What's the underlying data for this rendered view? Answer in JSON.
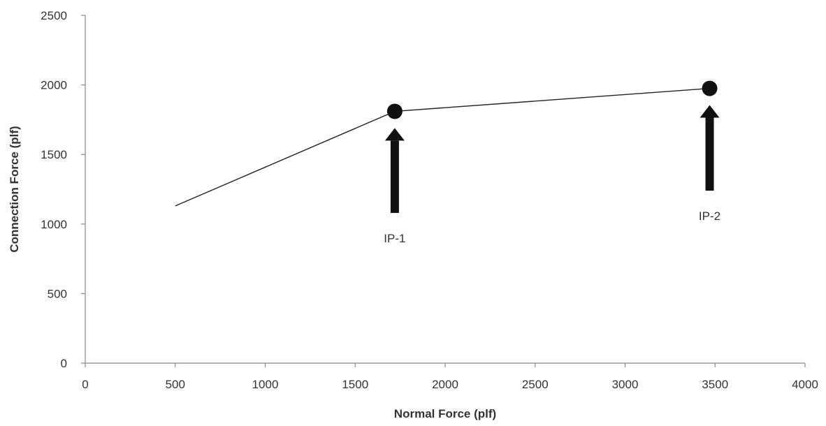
{
  "chart_data": {
    "type": "line",
    "xlabel": "Normal Force (plf)",
    "ylabel": "Connection Force (plf)",
    "xlim": [
      0,
      4000
    ],
    "ylim": [
      0,
      2500
    ],
    "x_ticks": [
      0,
      500,
      1000,
      1500,
      2000,
      2500,
      3000,
      3500,
      4000
    ],
    "y_ticks": [
      0,
      500,
      1000,
      1500,
      2000,
      2500
    ],
    "grid": false,
    "series": [
      {
        "color": "#222222",
        "points": [
          {
            "x": 500,
            "y": 1130
          },
          {
            "x": 1720,
            "y": 1810
          },
          {
            "x": 3470,
            "y": 1975
          }
        ]
      }
    ],
    "markers": [
      {
        "x": 1720,
        "y": 1810,
        "color": "#111111"
      },
      {
        "x": 3470,
        "y": 1975,
        "color": "#111111"
      }
    ],
    "annotations": [
      {
        "text": "IP-1",
        "x": 1720,
        "arrow_from_y": 1080,
        "arrow_to_y": 1690
      },
      {
        "text": "IP-2",
        "x": 3470,
        "arrow_from_y": 1240,
        "arrow_to_y": 1855
      }
    ]
  }
}
